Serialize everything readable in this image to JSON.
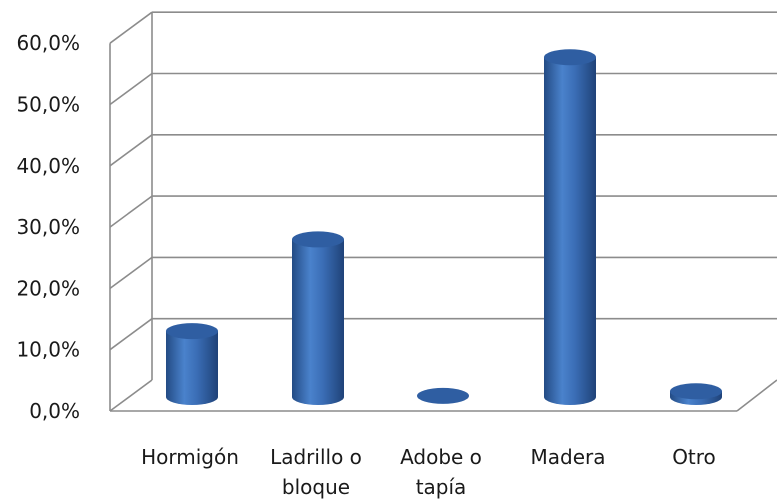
{
  "chart_data": {
    "type": "bar",
    "style": "3d-cylinder",
    "categories": [
      [
        "Hormigón"
      ],
      [
        "Ladrillo o",
        "bloque"
      ],
      [
        "Adobe o",
        "tapía"
      ],
      [
        "Madera"
      ],
      [
        "Otro"
      ]
    ],
    "values": [
      11.5,
      27.5,
      0.2,
      59.3,
      1.0
    ],
    "ylim": [
      0,
      60
    ],
    "yticks": [
      "0,0%",
      "10,0%",
      "20,0%",
      "30,0%",
      "40,0%",
      "50,0%",
      "60,0%"
    ],
    "grid": true,
    "legend": "none",
    "colors": {
      "bar": "#3a6db5",
      "grid": "#8c8c8c"
    }
  }
}
